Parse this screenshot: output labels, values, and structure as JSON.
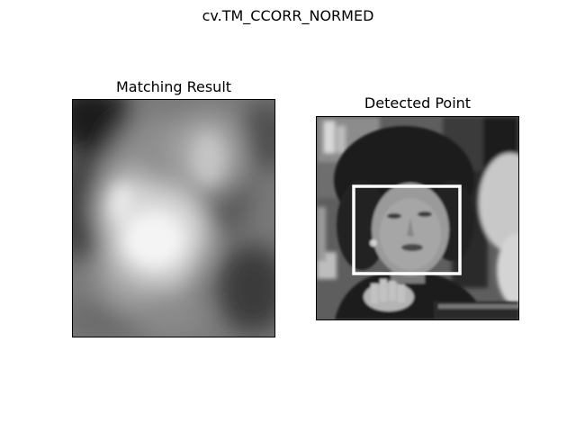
{
  "figure": {
    "title": "cv.TM_CCORR_NORMED"
  },
  "panels": [
    {
      "title": "Matching Result",
      "content": "grayscale template-matching correlation heatmap with bright peak region"
    },
    {
      "title": "Detected Point",
      "content": "grayscale photo of a woman's face with a white rectangle around the detected face"
    }
  ],
  "colors": {
    "background": "#ffffff",
    "frame": "#000000",
    "box": "#ffffff"
  }
}
